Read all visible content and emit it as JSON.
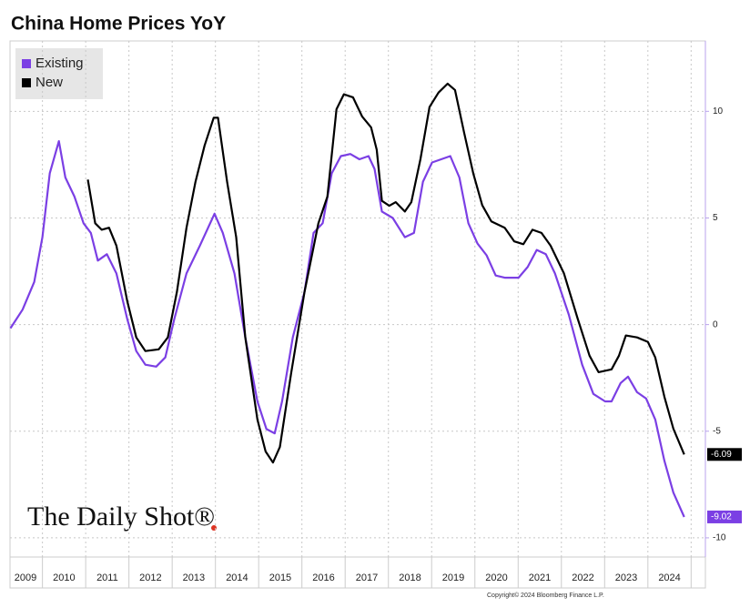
{
  "chart_data": {
    "type": "line",
    "title": "China Home Prices YoY",
    "watermark": "The Daily Shot®",
    "copyright": "Copyright© 2024 Bloomberg Finance L.P.",
    "categories": [
      "2009",
      "2010",
      "2011",
      "2012",
      "2013",
      "2014",
      "2015",
      "2016",
      "2017",
      "2018",
      "2019",
      "2020",
      "2021",
      "2022",
      "2023",
      "2024"
    ],
    "xlim": [
      2009.25,
      2025.33
    ],
    "ylim": [
      -10.9,
      13.3
    ],
    "yticks": [
      -10,
      -5,
      0,
      5,
      10
    ],
    "grid": true,
    "legend": "top-left",
    "series": [
      {
        "name": "Existing",
        "color": "#7b3fe4",
        "x": [
          2009.26,
          2009.54,
          2009.81,
          2010.0,
          2010.17,
          2010.38,
          2010.53,
          2010.74,
          2010.95,
          2011.12,
          2011.28,
          2011.49,
          2011.71,
          2011.96,
          2012.17,
          2012.38,
          2012.63,
          2012.84,
          2013.05,
          2013.33,
          2013.64,
          2013.98,
          2014.17,
          2014.44,
          2014.69,
          2014.97,
          2015.18,
          2015.37,
          2015.54,
          2015.79,
          2016.06,
          2016.27,
          2016.48,
          2016.69,
          2016.9,
          2017.12,
          2017.33,
          2017.54,
          2017.68,
          2017.85,
          2018.1,
          2018.38,
          2018.59,
          2018.8,
          2019.01,
          2019.22,
          2019.43,
          2019.64,
          2019.85,
          2020.06,
          2020.27,
          2020.48,
          2020.69,
          2021.01,
          2021.22,
          2021.43,
          2021.64,
          2021.85,
          2022.17,
          2022.48,
          2022.74,
          2023.01,
          2023.16,
          2023.37,
          2023.54,
          2023.75,
          2023.96,
          2024.17,
          2024.38,
          2024.59,
          2024.84
        ],
        "values": [
          -0.17,
          0.7,
          2.0,
          4.1,
          7.1,
          8.6,
          6.9,
          6.0,
          4.75,
          4.3,
          3.0,
          3.3,
          2.4,
          0.26,
          -1.24,
          -1.88,
          -1.97,
          -1.54,
          0.26,
          2.4,
          3.7,
          5.2,
          4.3,
          2.4,
          -0.6,
          -3.6,
          -4.9,
          -5.1,
          -3.6,
          -0.6,
          1.54,
          4.3,
          4.75,
          7.1,
          7.9,
          8.0,
          7.75,
          7.9,
          7.3,
          5.3,
          5.0,
          4.1,
          4.3,
          6.7,
          7.6,
          7.75,
          7.9,
          6.9,
          4.75,
          3.8,
          3.25,
          2.3,
          2.2,
          2.2,
          2.7,
          3.5,
          3.3,
          2.4,
          0.47,
          -1.88,
          -3.25,
          -3.6,
          -3.6,
          -2.74,
          -2.44,
          -3.17,
          -3.47,
          -4.45,
          -6.38,
          -7.88,
          -9.02
        ]
      },
      {
        "name": "New",
        "color": "#000000",
        "x": [
          2011.05,
          2011.22,
          2011.37,
          2011.54,
          2011.71,
          2011.96,
          2012.17,
          2012.38,
          2012.69,
          2012.9,
          2013.11,
          2013.33,
          2013.54,
          2013.75,
          2013.96,
          2014.06,
          2014.27,
          2014.48,
          2014.69,
          2014.97,
          2015.16,
          2015.33,
          2015.49,
          2015.75,
          2016.06,
          2016.38,
          2016.59,
          2016.8,
          2016.97,
          2017.18,
          2017.39,
          2017.6,
          2017.73,
          2017.85,
          2018.02,
          2018.17,
          2018.38,
          2018.53,
          2018.74,
          2018.95,
          2019.16,
          2019.37,
          2019.54,
          2019.75,
          2019.96,
          2020.17,
          2020.38,
          2020.69,
          2020.91,
          2021.12,
          2021.33,
          2021.54,
          2021.75,
          2022.06,
          2022.38,
          2022.65,
          2022.86,
          2023.16,
          2023.33,
          2023.49,
          2023.75,
          2024.0,
          2024.17,
          2024.38,
          2024.59,
          2024.84
        ],
        "values": [
          6.8,
          4.75,
          4.45,
          4.54,
          3.7,
          1.1,
          -0.6,
          -1.24,
          -1.16,
          -0.6,
          1.54,
          4.54,
          6.7,
          8.4,
          9.7,
          9.7,
          6.7,
          4.1,
          -0.6,
          -4.45,
          -5.95,
          -6.47,
          -5.74,
          -2.3,
          1.54,
          4.75,
          6.0,
          10.1,
          10.8,
          10.66,
          9.76,
          9.25,
          8.2,
          5.8,
          5.57,
          5.74,
          5.3,
          5.74,
          7.75,
          10.2,
          10.88,
          11.3,
          11.0,
          9.0,
          7.1,
          5.6,
          4.84,
          4.54,
          3.9,
          3.77,
          4.45,
          4.3,
          3.7,
          2.4,
          0.26,
          -1.46,
          -2.23,
          -2.1,
          -1.46,
          -0.51,
          -0.6,
          -0.81,
          -1.54,
          -3.38,
          -4.88,
          -6.09
        ]
      }
    ]
  }
}
